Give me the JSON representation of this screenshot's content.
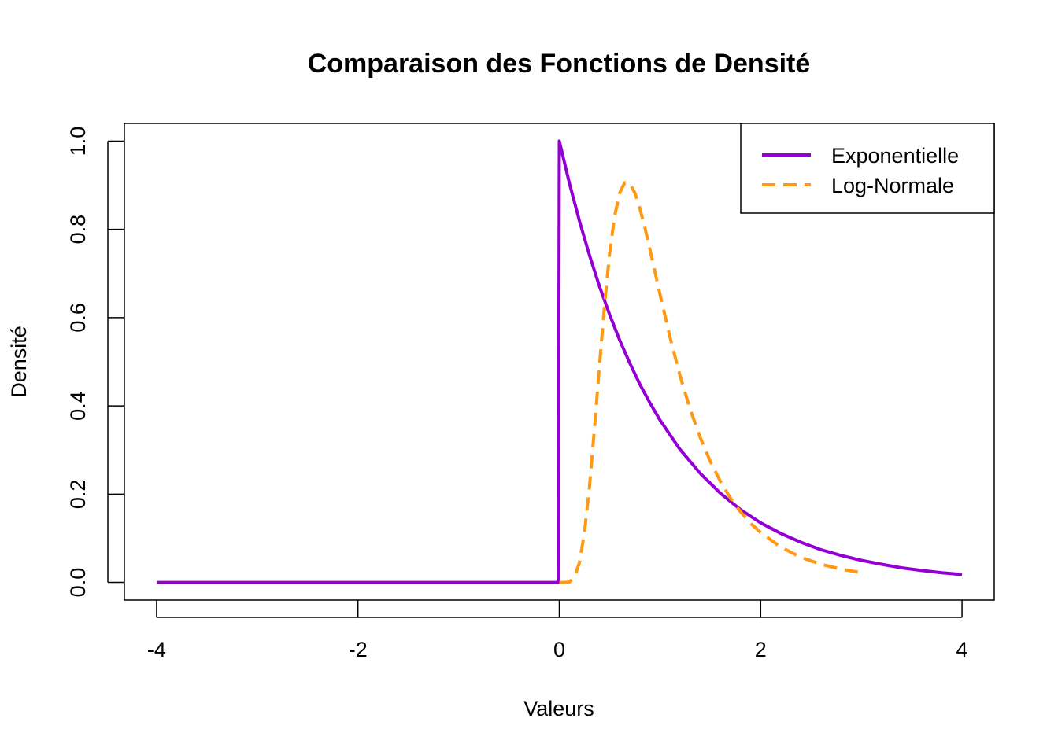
{
  "chart_data": {
    "type": "line",
    "title": "Comparaison des Fonctions de Densité",
    "xlabel": "Valeurs",
    "ylabel": "Densité",
    "xlim": [
      -4.32,
      4.32
    ],
    "ylim": [
      -0.04,
      1.04
    ],
    "xticks": [
      -4,
      -2,
      0,
      2,
      4
    ],
    "xtick_labels": [
      "-4",
      "-2",
      "0",
      "2",
      "4"
    ],
    "yticks": [
      0,
      0.2,
      0.4,
      0.6,
      0.8,
      1
    ],
    "ytick_labels": [
      "0.0",
      "0.2",
      "0.4",
      "0.6",
      "0.8",
      "1.0"
    ],
    "grid": false,
    "legend_position": "top-right",
    "series": [
      {
        "name": "Exponentielle",
        "color": "#9400D3",
        "style": "solid",
        "x": [
          -4,
          -3,
          -2,
          -1,
          -0.01,
          0,
          0.1,
          0.2,
          0.3,
          0.4,
          0.5,
          0.6,
          0.7,
          0.8,
          0.9,
          1,
          1.2,
          1.4,
          1.6,
          1.8,
          2,
          2.2,
          2.4,
          2.6,
          2.8,
          3,
          3.2,
          3.4,
          3.6,
          3.8,
          4
        ],
        "y": [
          0,
          0,
          0,
          0,
          0,
          1,
          0.905,
          0.819,
          0.741,
          0.67,
          0.607,
          0.549,
          0.497,
          0.449,
          0.407,
          0.368,
          0.301,
          0.247,
          0.202,
          0.165,
          0.135,
          0.111,
          0.091,
          0.074,
          0.061,
          0.05,
          0.041,
          0.033,
          0.027,
          0.022,
          0.018
        ]
      },
      {
        "name": "Log-Normale",
        "color": "#FF9912",
        "style": "dashed",
        "x": [
          0,
          0.05,
          0.1,
          0.15,
          0.2,
          0.25,
          0.3,
          0.35,
          0.4,
          0.45,
          0.5,
          0.55,
          0.6,
          0.65,
          0.7,
          0.75,
          0.8,
          0.85,
          0.9,
          0.95,
          1,
          1.1,
          1.2,
          1.3,
          1.4,
          1.5,
          1.6,
          1.7,
          1.8,
          1.9,
          2,
          2.2,
          2.4,
          2.6,
          2.8,
          3
        ],
        "y": [
          0,
          0,
          0.001,
          0.012,
          0.045,
          0.113,
          0.218,
          0.352,
          0.495,
          0.631,
          0.746,
          0.83,
          0.883,
          0.906,
          0.904,
          0.883,
          0.848,
          0.804,
          0.755,
          0.704,
          0.653,
          0.555,
          0.467,
          0.392,
          0.328,
          0.274,
          0.229,
          0.191,
          0.16,
          0.134,
          0.113,
          0.08,
          0.057,
          0.041,
          0.03,
          0.022
        ]
      }
    ]
  }
}
